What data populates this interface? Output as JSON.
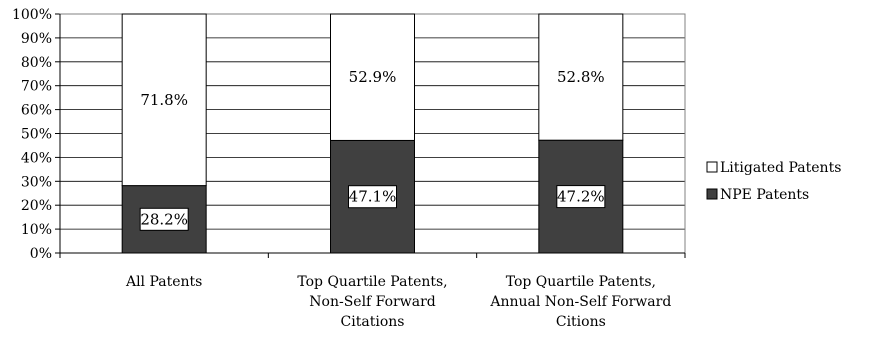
{
  "chart_data": {
    "type": "bar",
    "stacked": true,
    "categories": [
      [
        "All Patents"
      ],
      [
        "Top Quartile Patents,",
        "Non-Self Forward",
        "Citations"
      ],
      [
        "Top Quartile Patents,",
        "Annual Non-Self Forward",
        "Citions"
      ]
    ],
    "series": [
      {
        "name": "NPE Patents",
        "values": [
          28.2,
          47.1,
          47.2
        ],
        "labels": [
          "28.2%",
          "47.1%",
          "47.2%"
        ],
        "color": "#404040"
      },
      {
        "name": "Litigated Patents",
        "values": [
          71.8,
          52.9,
          52.8
        ],
        "labels": [
          "71.8%",
          "52.9%",
          "52.8%"
        ],
        "color": "#ffffff"
      }
    ],
    "ylim": [
      0,
      100
    ],
    "yticks": [
      "0%",
      "10%",
      "20%",
      "30%",
      "40%",
      "50%",
      "60%",
      "70%",
      "80%",
      "90%",
      "100%"
    ],
    "grid": true,
    "legend_placement": "right"
  }
}
